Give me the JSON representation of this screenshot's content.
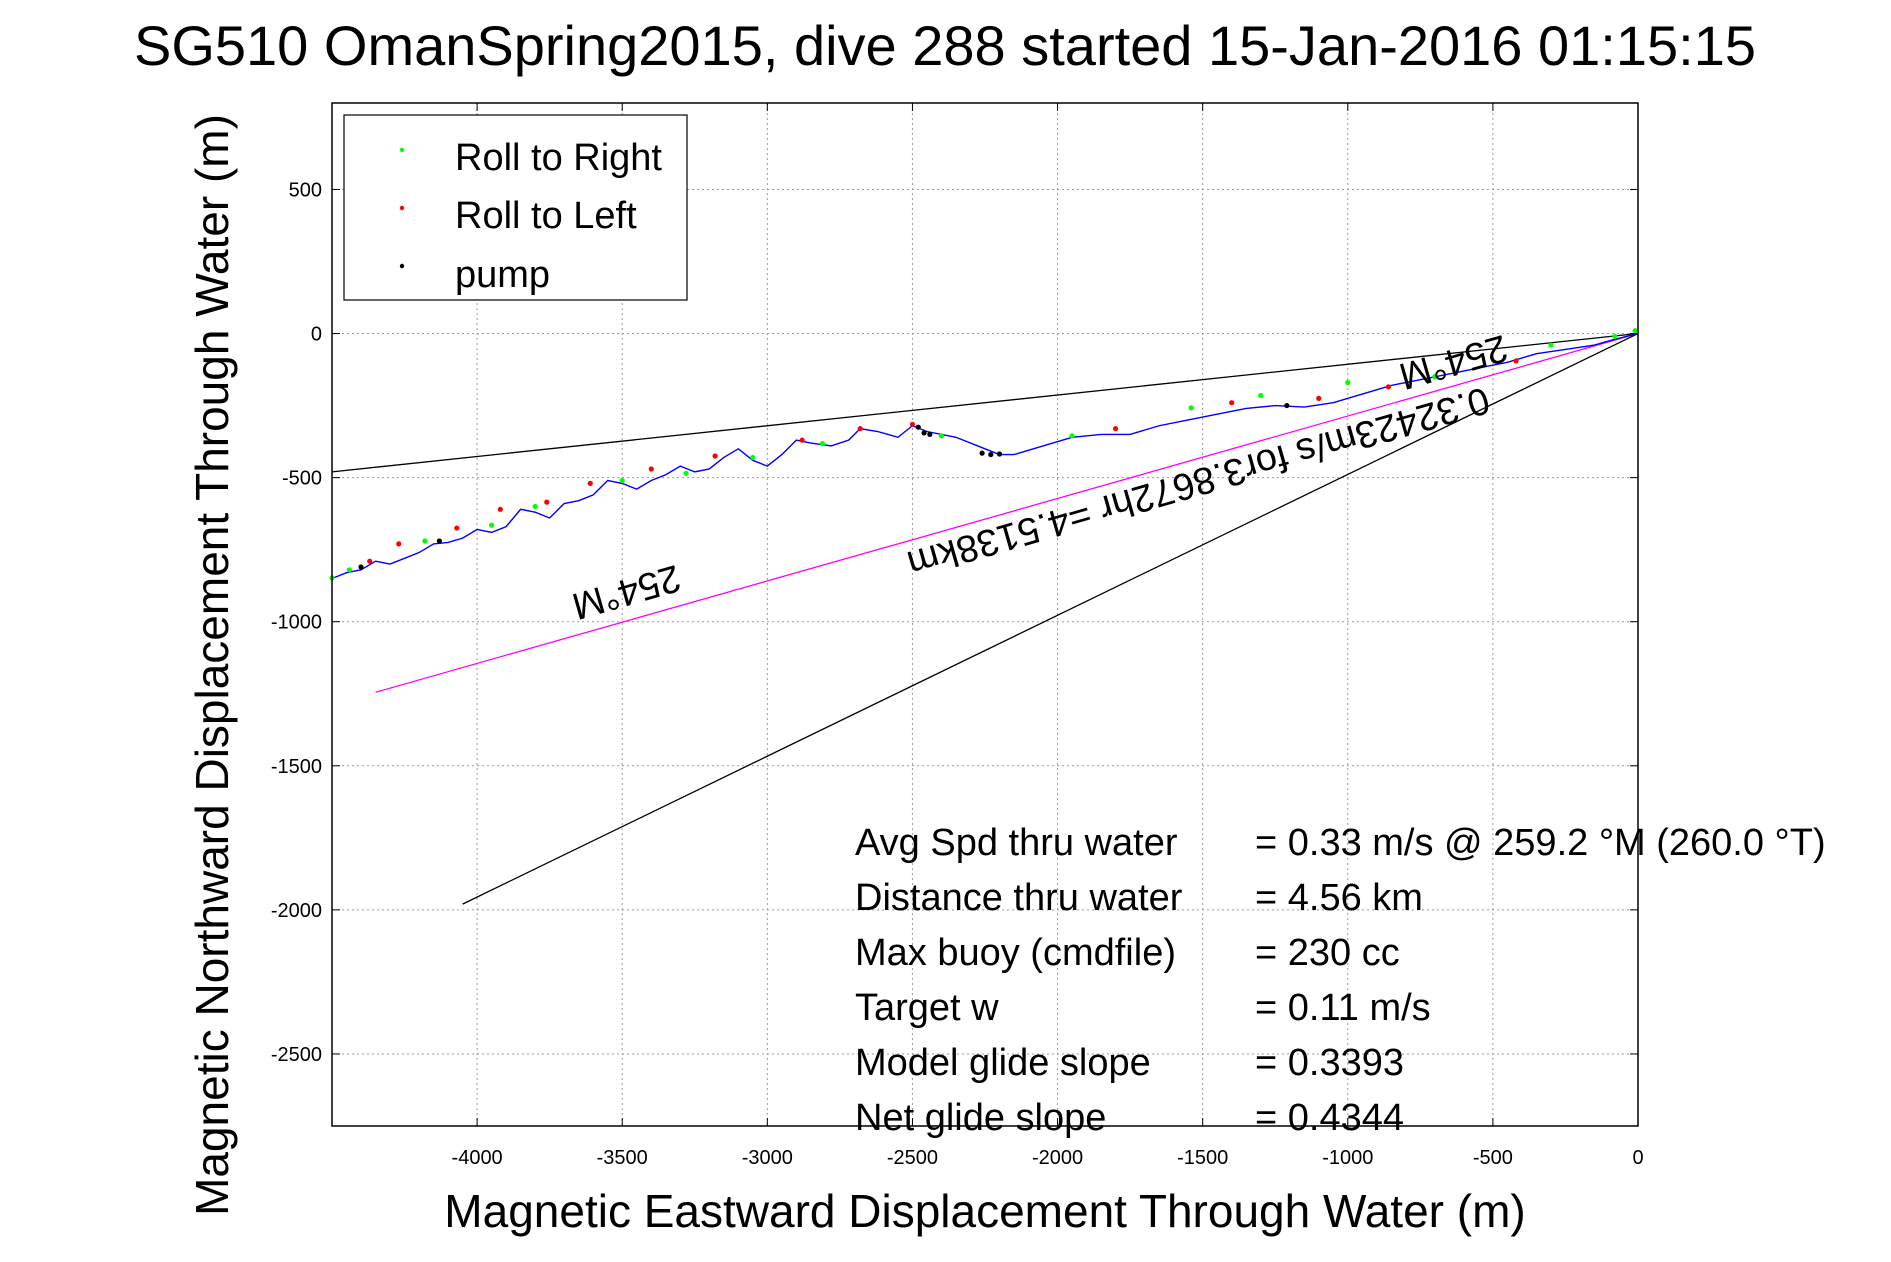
{
  "chart_data": {
    "type": "line",
    "title": "SG510 OmanSpring2015, dive 288 started 15-Jan-2016 01:15:15",
    "xlabel": "Magnetic Eastward Displacement Through Water (m)",
    "ylabel": "Magnetic Northward Displacement Through Water (m)",
    "xlim": [
      -4500,
      0
    ],
    "ylim": [
      -2750,
      800
    ],
    "grid": true,
    "x_ticks": [
      -4000,
      -3500,
      -3000,
      -2500,
      -2000,
      -1500,
      -1000,
      -500,
      0
    ],
    "y_ticks": [
      500,
      0,
      -500,
      -1000,
      -1500,
      -2000,
      -2500
    ],
    "legend": {
      "placement": "top-left",
      "entries": [
        {
          "label": "Roll to Right",
          "color": "#00ff00"
        },
        {
          "label": "Roll to Left",
          "color": "#ff0000"
        },
        {
          "label": "pump",
          "color": "#000000"
        }
      ]
    },
    "track": {
      "color": "#0000ff",
      "x": [
        0,
        -80,
        -150,
        -250,
        -350,
        -450,
        -550,
        -650,
        -750,
        -850,
        -950,
        -1050,
        -1150,
        -1250,
        -1350,
        -1450,
        -1550,
        -1650,
        -1750,
        -1850,
        -1950,
        -2050,
        -2150,
        -2200,
        -2250,
        -2350,
        -2450,
        -2500,
        -2550,
        -2620,
        -2680,
        -2720,
        -2780,
        -2850,
        -2900,
        -2950,
        -3000,
        -3050,
        -3100,
        -3150,
        -3200,
        -3250,
        -3300,
        -3350,
        -3400,
        -3450,
        -3500,
        -3550,
        -3600,
        -3650,
        -3700,
        -3750,
        -3800,
        -3850,
        -3900,
        -3950,
        -4000,
        -4050,
        -4100,
        -4150,
        -4200,
        -4250,
        -4300,
        -4350,
        -4400,
        -4450,
        -4500
      ],
      "y": [
        0,
        -20,
        -40,
        -55,
        -70,
        -100,
        -120,
        -140,
        -160,
        -180,
        -210,
        -240,
        -255,
        -250,
        -260,
        -280,
        -300,
        -320,
        -350,
        -350,
        -360,
        -390,
        -420,
        -420,
        -400,
        -360,
        -340,
        -320,
        -360,
        -340,
        -330,
        -370,
        -390,
        -380,
        -370,
        -420,
        -460,
        -440,
        -400,
        -430,
        -470,
        -480,
        -460,
        -490,
        -510,
        -540,
        -520,
        -510,
        -560,
        -580,
        -590,
        -640,
        -620,
        -610,
        -670,
        -690,
        -680,
        -710,
        -725,
        -730,
        -760,
        -780,
        -800,
        -790,
        -820,
        -830,
        -850
      ]
    },
    "lines": [
      {
        "name": "",
        "color": "#000000",
        "x": [
          0,
          -4500
        ],
        "y": [
          0,
          -480
        ]
      },
      {
        "name": "",
        "color": "#ff00ff",
        "x": [
          0,
          -4350
        ],
        "y": [
          0,
          -1245
        ]
      },
      {
        "name": "",
        "color": "#000000",
        "x": [
          0,
          -4050
        ],
        "y": [
          0,
          -1980
        ]
      }
    ],
    "markers": {
      "roll_right": {
        "color": "#00ff00",
        "x": [
          -10,
          -80,
          -300,
          -700,
          -1000,
          -1300,
          -1540,
          -1950,
          -2400,
          -2810,
          -3050,
          -3280,
          -3500,
          -3800,
          -3950,
          -4180,
          -4440,
          -4500
        ],
        "y": [
          10,
          -10,
          -40,
          -150,
          -170,
          -215,
          -258,
          -355,
          -355,
          -382,
          -430,
          -485,
          -510,
          -600,
          -665,
          -720,
          -820,
          -848
        ]
      },
      "roll_left": {
        "color": "#ff0000",
        "x": [
          -420,
          -860,
          -1100,
          -1400,
          -1800,
          -2500,
          -2680,
          -2880,
          -3180,
          -3400,
          -3610,
          -3760,
          -3920,
          -4070,
          -4270,
          -4370
        ],
        "y": [
          -95,
          -185,
          -225,
          -240,
          -330,
          -315,
          -330,
          -370,
          -425,
          -470,
          -520,
          -585,
          -610,
          -675,
          -730,
          -790
        ]
      },
      "pump": {
        "color": "#000000",
        "x": [
          -1210,
          -2200,
          -2230,
          -2260,
          -2440,
          -2460,
          -2480,
          -4130,
          -4400
        ],
        "y": [
          -250,
          -418,
          -420,
          -415,
          -350,
          -345,
          -325,
          -720,
          -810
        ]
      }
    },
    "annotations": {
      "heading_left": "254°M",
      "heading_right": "254°M",
      "speed_line": "0.32423m/s for3.8672hr =4.5138km",
      "stats": [
        {
          "label": "Avg Spd thru water",
          "value": "=  0.33 m/s @ 259.2 °M (260.0 °T)"
        },
        {
          "label": "Distance thru water",
          "value": "=  4.56 km"
        },
        {
          "label": "Max buoy (cmdfile)",
          "value": "= 230 cc"
        },
        {
          "label": "Target w",
          "value": "= 0.11 m/s"
        },
        {
          "label": "Model glide slope",
          "value": "= 0.3393"
        },
        {
          "label": "Net glide slope",
          "value": "= 0.4344"
        }
      ]
    }
  }
}
